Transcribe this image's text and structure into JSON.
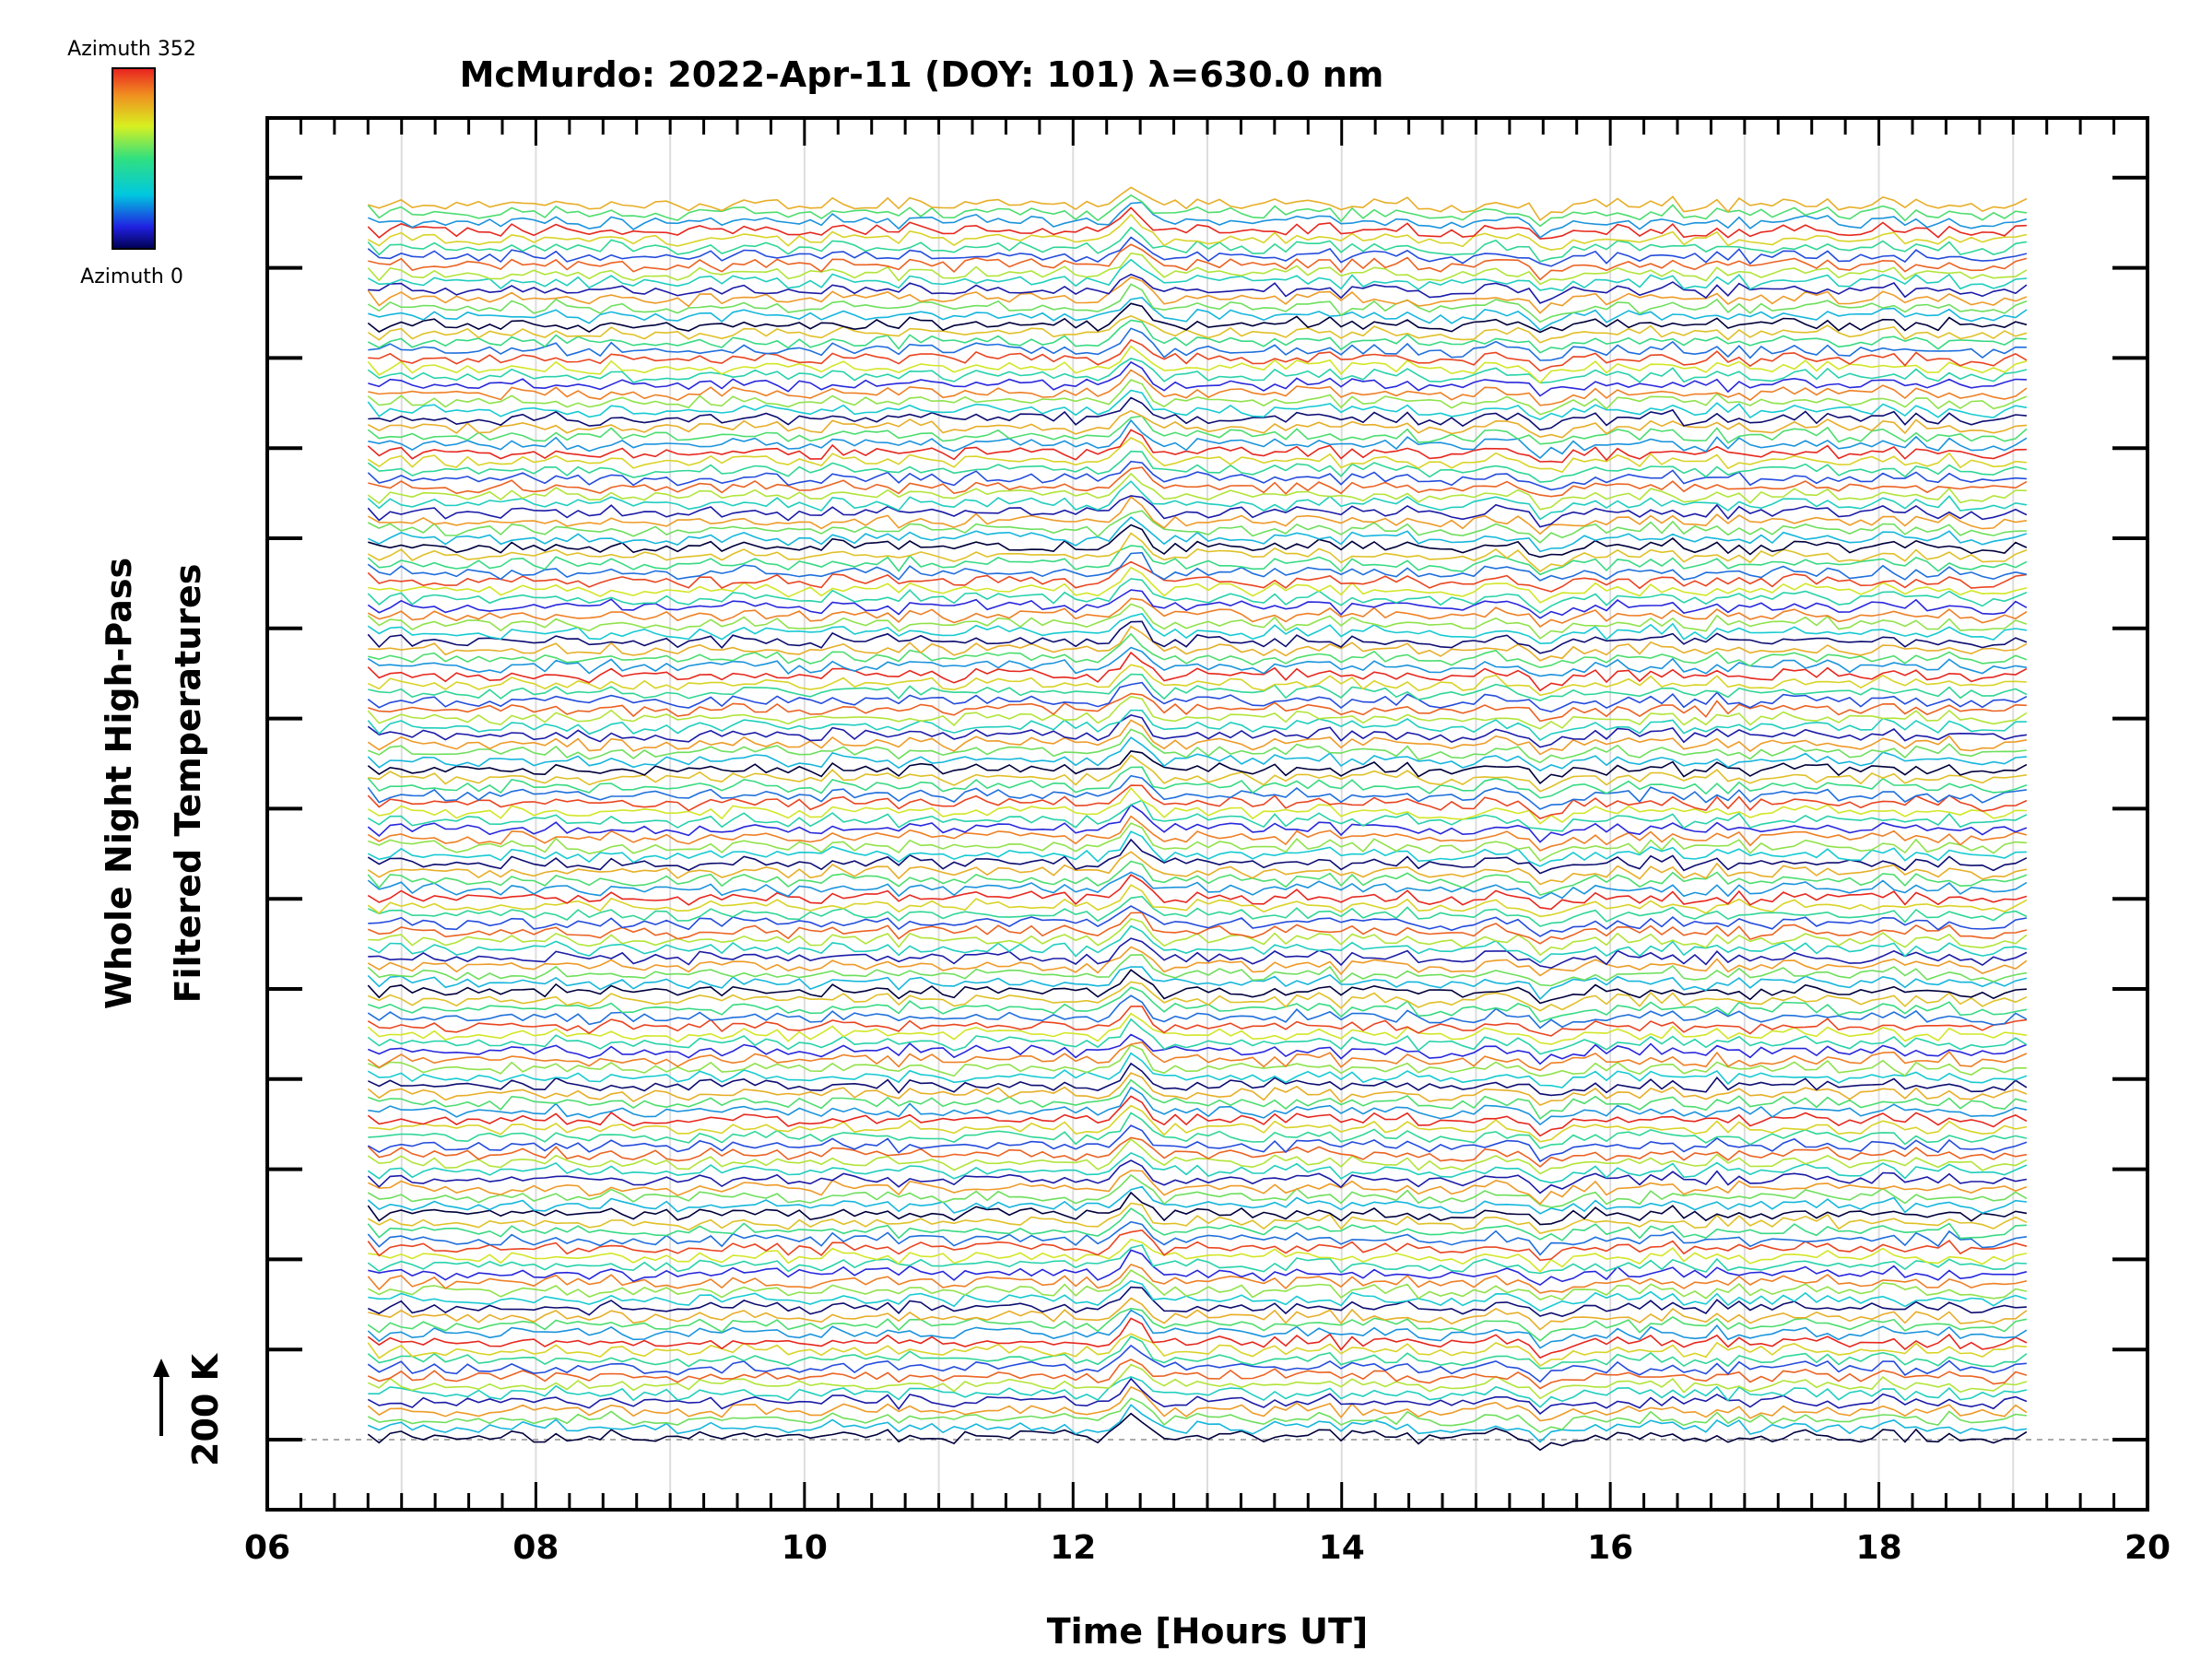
{
  "chart_data": {
    "type": "line",
    "title": "McMurdo: 2022-Apr-11 (DOY: 101) λ=630.0 nm",
    "xlabel": "Time [Hours UT]",
    "ylabel_lines": [
      "Whole Night High-Pass",
      "Filtered Temperatures"
    ],
    "scale_label": "200 K",
    "xlim": [
      6,
      20
    ],
    "x_ticks": [
      "06",
      "08",
      "10",
      "12",
      "14",
      "16",
      "18",
      "20"
    ],
    "x_tick_values": [
      6,
      8,
      10,
      12,
      14,
      16,
      18,
      20
    ],
    "grid": "vertical gridlines every 1 hour",
    "time_range": [
      6.75,
      19.1
    ],
    "trace_count": 145,
    "colorbar": {
      "top_label": "Azimuth  352",
      "bottom_label": "Azimuth  0",
      "colormap": "rainbow"
    }
  }
}
